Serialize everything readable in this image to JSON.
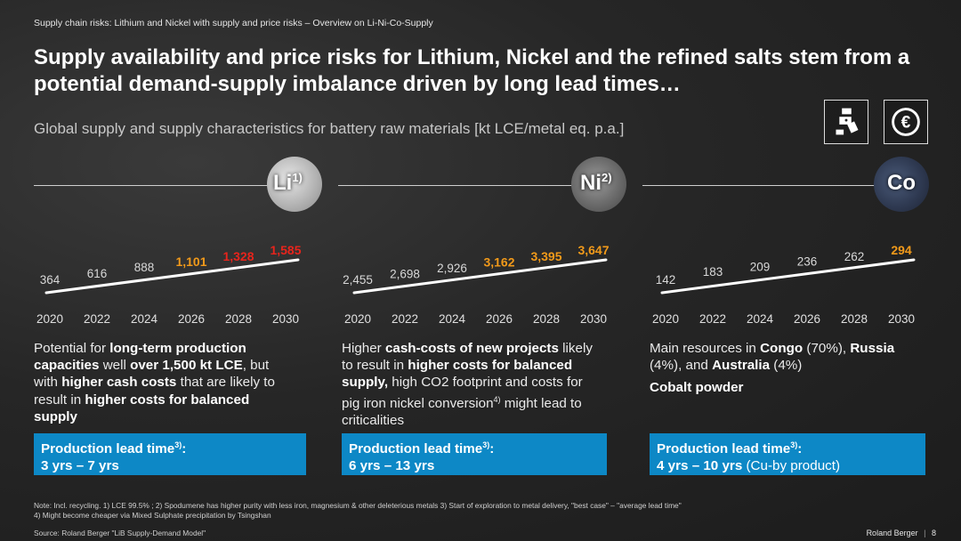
{
  "header": {
    "breadcrumb": "Supply chain risks: Lithium  and Nickel with  supply and price risks – Overview on Li-Ni-Co-Supply",
    "title": "Supply availability and price risks for Lithium, Nickel and the refined salts stem from a potential demand-supply imbalance driven by long lead times…",
    "subtitle": "Global supply and supply characteristics for battery raw materials [kt LCE/metal eq. p.a.]"
  },
  "icons": [
    {
      "name": "supply-chain-icon"
    },
    {
      "name": "euro-price-icon"
    }
  ],
  "colors": {
    "accent_blue": "#0d88c6",
    "red": "#e8241c",
    "orange": "#f29a1a",
    "gray_label": "#d8d8d8"
  },
  "columns": [
    {
      "material": "Li",
      "material_note": "1)",
      "description_lines": [
        [
          [
            "Potential for ",
            false
          ],
          [
            "long-term production",
            true
          ]
        ],
        [
          [
            "capacities",
            true
          ],
          [
            " well ",
            false
          ],
          [
            "over 1,500 kt LCE",
            true
          ],
          [
            ", but",
            false
          ]
        ],
        [
          [
            "with ",
            false
          ],
          [
            "higher cash costs",
            true
          ],
          [
            " that are likely to",
            false
          ]
        ],
        [
          [
            "result in ",
            false
          ],
          [
            "higher costs for balanced",
            true
          ]
        ],
        [
          [
            "supply",
            true
          ]
        ]
      ],
      "lead_title": "Production lead time",
      "lead_note": "3)",
      "lead_value": "3 yrs – 7 yrs",
      "lead_extra": ""
    },
    {
      "material": "Ni",
      "material_note": "2)",
      "description_lines": [
        [
          [
            "Higher ",
            false
          ],
          [
            "cash-costs of new projects",
            true
          ],
          [
            " likely",
            false
          ]
        ],
        [
          [
            "to result in ",
            false
          ],
          [
            "higher costs for balanced",
            true
          ]
        ],
        [
          [
            "supply,",
            true
          ],
          [
            " high CO2 footprint and costs for",
            false
          ]
        ],
        [
          [
            "pig iron nickel conversion",
            false
          ],
          [
            "4)",
            "sup"
          ],
          [
            " might lead to",
            false
          ]
        ],
        [
          [
            "criticalities",
            false
          ]
        ]
      ],
      "lead_title": "Production lead time",
      "lead_note": "3)",
      "lead_value": "6 yrs – 13 yrs",
      "lead_extra": ""
    },
    {
      "material": "Co",
      "material_note": "",
      "description_lines": [
        [
          [
            "Main resources in ",
            false
          ],
          [
            "Congo",
            true
          ],
          [
            " (70%), ",
            false
          ],
          [
            "Russia",
            true
          ]
        ],
        [
          [
            "(4%), and ",
            false
          ],
          [
            "Australia",
            true
          ],
          [
            " (4%)",
            false
          ]
        ],
        [
          [
            "",
            false
          ]
        ],
        [
          [
            "Cobalt powder",
            true
          ]
        ]
      ],
      "lead_title": "Production lead time",
      "lead_note": "3)",
      "lead_value": "4 yrs – 10 yrs",
      "lead_extra": " (Cu-by product)"
    }
  ],
  "chart_data": [
    {
      "type": "line",
      "material": "Li",
      "x": [
        2020,
        2022,
        2024,
        2026,
        2028,
        2030
      ],
      "values": [
        364,
        616,
        888,
        1101,
        1328,
        1585
      ],
      "labels": [
        "364",
        "616",
        "888",
        "1,101",
        "1,328",
        "1,585"
      ],
      "label_colors": [
        "gray",
        "gray",
        "gray",
        "orange",
        "red",
        "red"
      ],
      "bold": [
        false,
        false,
        false,
        true,
        true,
        true
      ]
    },
    {
      "type": "line",
      "material": "Ni",
      "x": [
        2020,
        2022,
        2024,
        2026,
        2028,
        2030
      ],
      "values": [
        2455,
        2698,
        2926,
        3162,
        3395,
        3647
      ],
      "labels": [
        "2,455",
        "2,698",
        "2,926",
        "3,162",
        "3,395",
        "3,647"
      ],
      "label_colors": [
        "gray",
        "gray",
        "gray",
        "orange",
        "orange",
        "orange"
      ],
      "bold": [
        false,
        false,
        false,
        true,
        true,
        true
      ]
    },
    {
      "type": "line",
      "material": "Co",
      "x": [
        2020,
        2022,
        2024,
        2026,
        2028,
        2030
      ],
      "values": [
        142,
        183,
        209,
        236,
        262,
        294
      ],
      "labels": [
        "142",
        "183",
        "209",
        "236",
        "262",
        "294"
      ],
      "label_colors": [
        "gray",
        "gray",
        "gray",
        "gray",
        "gray",
        "orange"
      ],
      "bold": [
        false,
        false,
        false,
        false,
        false,
        true
      ]
    }
  ],
  "footer": {
    "note_line1": "Note: Incl. recycling. 1)  LCE 99.5% ; 2) Spodumene has higher purity with less iron, magnesium &  other deleterious metals 3) Start of exploration to metal delivery, \"best case\" – \"average lead time\"",
    "note_line2": "4) Might become cheaper via Mixed Sulphate precipitation by Tsingshan",
    "source": "Source: Roland Berger \"LiB Supply-Demand Model\"",
    "brand": "Roland Berger",
    "separator": "|",
    "page": "8"
  }
}
